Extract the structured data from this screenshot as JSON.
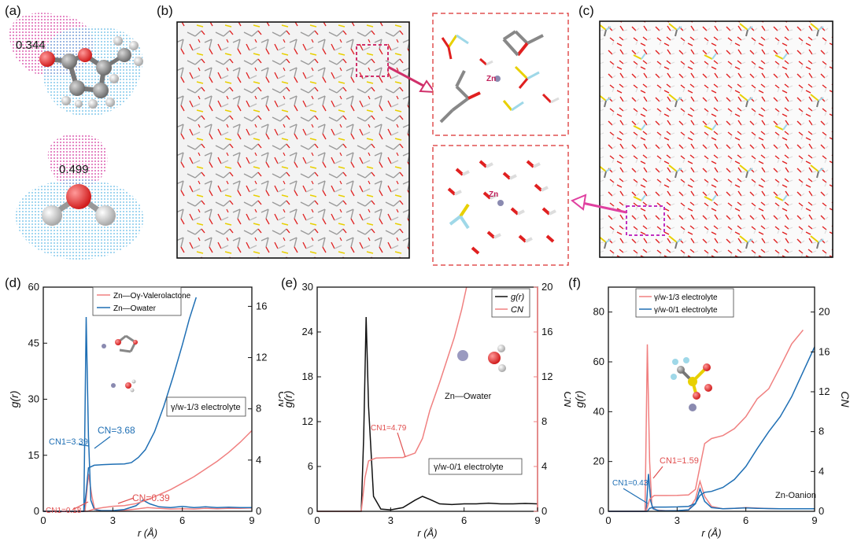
{
  "panels": {
    "a": {
      "label": "(a)",
      "esp_values": [
        "0.344",
        "0.499"
      ]
    },
    "b": {
      "label": "(b)",
      "zoom_label_top": "Zn",
      "zoom_label_bottom": "Zn"
    },
    "c": {
      "label": "(c)"
    },
    "d": {
      "label": "(d)"
    },
    "e": {
      "label": "(e)"
    },
    "f": {
      "label": "(f)"
    }
  },
  "colors": {
    "red_series": "#f08080",
    "blue_series": "#1f6fb4",
    "black_series": "#111111",
    "magenta": "#e0407a",
    "frame_dash": "#e05050"
  },
  "chart_data": [
    {
      "id": "d",
      "type": "line",
      "xlabel": "r (Å)",
      "ylabel": "g(r)",
      "y2label": "CN",
      "xlim": [
        0,
        9
      ],
      "ylim": [
        0,
        60
      ],
      "y2lim": [
        0,
        17.5
      ],
      "xticks": [
        0,
        3,
        6,
        9
      ],
      "yticks": [
        0,
        15,
        30,
        45,
        60
      ],
      "y2ticks": [
        0,
        4,
        8,
        12,
        16
      ],
      "legend": [
        "Zn—Oγ-Valerolactone",
        "Zn—Owater"
      ],
      "legend_position": "top-left",
      "system_label": "γ/w-1/3 electrolyte",
      "annotations": [
        "CN1=3.39",
        "CN=3.68",
        "CN1=0.18",
        "CN=0.39"
      ],
      "series": [
        {
          "name": "Zn—Oγ-Valerolactone g(r)",
          "axis": "left",
          "color": "red",
          "x": [
            0,
            1.8,
            1.95,
            2.1,
            2.2,
            2.3,
            2.5,
            3,
            3.5,
            4,
            4.5,
            5,
            5.5,
            6,
            6.5,
            7,
            7.5,
            8,
            8.5,
            9
          ],
          "y": [
            0,
            0,
            10,
            4,
            1,
            0.3,
            0.2,
            0.2,
            0.3,
            0.6,
            1,
            0.8,
            0.6,
            0.7,
            0.6,
            0.8,
            0.7,
            0.8,
            0.8,
            0.9
          ]
        },
        {
          "name": "Zn—Owater g(r)",
          "axis": "left",
          "color": "blue",
          "x": [
            0,
            1.75,
            1.85,
            1.95,
            2.05,
            2.2,
            2.5,
            3,
            3.5,
            4,
            4.3,
            4.6,
            5,
            5.5,
            6,
            6.5,
            7,
            7.5,
            8,
            8.5,
            9
          ],
          "y": [
            0,
            0,
            52,
            20,
            3,
            0.5,
            0.2,
            0.2,
            0.5,
            1.5,
            3,
            2,
            1.2,
            1,
            1.3,
            1,
            1.2,
            1,
            1.1,
            1,
            1
          ]
        },
        {
          "name": "Zn—Oγ-Valerolactone CN",
          "axis": "right",
          "color": "red",
          "x": [
            0,
            1.9,
            2.2,
            2.6,
            3,
            3.5,
            4,
            4.5,
            5,
            5.5,
            6,
            6.5,
            7,
            7.5,
            8,
            8.5,
            9
          ],
          "y": [
            0,
            0,
            0.18,
            0.3,
            0.39,
            0.45,
            0.6,
            0.9,
            1.3,
            1.7,
            2.2,
            2.7,
            3.3,
            3.9,
            4.6,
            5.4,
            6.3
          ]
        },
        {
          "name": "Zn—Owater CN",
          "axis": "right",
          "color": "blue",
          "x": [
            0,
            1.75,
            1.85,
            1.95,
            2.2,
            2.6,
            3,
            3.5,
            3.8,
            4.1,
            4.4,
            4.8,
            5.2,
            5.6,
            6,
            6.3,
            6.6
          ],
          "y": [
            0,
            0,
            1.5,
            3.39,
            3.6,
            3.65,
            3.68,
            3.7,
            3.8,
            4.2,
            4.8,
            6.2,
            8.2,
            10.5,
            13,
            15,
            16.7
          ]
        }
      ]
    },
    {
      "id": "e",
      "type": "line",
      "xlabel": "r (Å)",
      "ylabel": "g(r)",
      "y2label": "CN",
      "xlim": [
        0,
        9
      ],
      "ylim": [
        0,
        30
      ],
      "y2lim": [
        0,
        20
      ],
      "xticks": [
        0,
        3,
        6,
        9
      ],
      "yticks": [
        0,
        6,
        12,
        18,
        24,
        30
      ],
      "y2ticks": [
        0,
        4,
        8,
        12,
        16,
        20
      ],
      "legend": [
        "g(r)",
        "CN"
      ],
      "legend_position": "top-right",
      "pair_label": "Zn—Owater",
      "system_label": "γ/w-0/1 electrolyte",
      "annotations": [
        "CN1=4.79"
      ],
      "series": [
        {
          "name": "g(r)",
          "axis": "left",
          "color": "black",
          "x": [
            0,
            1.8,
            1.9,
            2.0,
            2.1,
            2.3,
            2.6,
            3,
            3.5,
            4,
            4.3,
            4.6,
            5,
            5.5,
            6,
            6.5,
            7,
            7.5,
            8,
            8.5,
            9
          ],
          "y": [
            0,
            0,
            10,
            26,
            14,
            2,
            0.3,
            0.2,
            0.5,
            1.5,
            2,
            1.6,
            1,
            0.9,
            1,
            1,
            1.1,
            1,
            1,
            1.05,
            1
          ]
        },
        {
          "name": "CN",
          "axis": "right",
          "color": "red",
          "x": [
            0,
            1.8,
            1.95,
            2.1,
            2.4,
            3,
            3.5,
            4,
            4.3,
            4.6,
            5,
            5.3,
            5.6,
            5.9,
            6.1
          ],
          "y": [
            0,
            0,
            3,
            4.5,
            4.75,
            4.79,
            4.8,
            5.2,
            6.5,
            9,
            11.5,
            13.5,
            15.5,
            18,
            20
          ]
        }
      ]
    },
    {
      "id": "f",
      "type": "line",
      "xlabel": "r (Å)",
      "ylabel": "g(r)",
      "y2label": "CN",
      "xlim": [
        0,
        9
      ],
      "ylim": [
        0,
        90
      ],
      "y2lim": [
        0,
        22.5
      ],
      "xticks": [
        0,
        3,
        6,
        9
      ],
      "yticks": [
        0,
        20,
        40,
        60,
        80
      ],
      "y2ticks": [
        0,
        4,
        8,
        12,
        16,
        20
      ],
      "legend": [
        "γ/w-1/3 electrolyte",
        "γ/w-0/1 electrolyte"
      ],
      "legend_position": "top-left",
      "pair_label": "Zn-Oanion",
      "annotations": [
        "CN1=1.59",
        "CN1=0.43"
      ],
      "series": [
        {
          "name": "γ/w-1/3 g(r)",
          "axis": "left",
          "color": "red",
          "x": [
            0,
            1.6,
            1.7,
            1.8,
            1.9,
            2.1,
            2.5,
            3,
            3.5,
            3.8,
            4,
            4.2,
            4.5,
            5,
            5.5,
            6,
            6.5,
            7,
            7.5,
            8,
            8.5,
            9
          ],
          "y": [
            0,
            0,
            67,
            20,
            2,
            0.5,
            0.3,
            0.3,
            0.5,
            5,
            12,
            6,
            2,
            1,
            1.2,
            1.5,
            1.3,
            1.1,
            1,
            1,
            1,
            1
          ]
        },
        {
          "name": "γ/w-0/1 g(r)",
          "axis": "left",
          "color": "blue",
          "x": [
            0,
            1.65,
            1.75,
            1.85,
            1.95,
            2.2,
            2.5,
            3,
            3.5,
            3.8,
            4,
            4.2,
            4.5,
            5,
            5.5,
            6,
            6.5,
            7,
            7.5,
            8,
            8.5,
            9
          ],
          "y": [
            0,
            0,
            15,
            4,
            1,
            0.3,
            0.2,
            0.3,
            0.6,
            3,
            9,
            4,
            1.5,
            1,
            1.2,
            1.4,
            1.2,
            1.1,
            1,
            1,
            1,
            1
          ]
        },
        {
          "name": "γ/w-1/3 CN",
          "axis": "right",
          "color": "red",
          "x": [
            0,
            1.65,
            1.8,
            2.0,
            2.5,
            3,
            3.5,
            3.8,
            4,
            4.2,
            4.5,
            5,
            5.5,
            6,
            6.5,
            7,
            7.5,
            8,
            8.5
          ],
          "y": [
            0,
            0,
            1.2,
            1.59,
            1.59,
            1.6,
            1.65,
            2.2,
            4.5,
            6.8,
            7.3,
            7.6,
            8.3,
            9.5,
            11.3,
            12.3,
            14.5,
            16.8,
            18.2
          ]
        },
        {
          "name": "γ/w-0/1 CN",
          "axis": "right",
          "color": "blue",
          "x": [
            0,
            1.7,
            1.8,
            2.0,
            2.5,
            3,
            3.5,
            3.8,
            4,
            4.2,
            4.5,
            5,
            5.5,
            6,
            6.5,
            7,
            7.5,
            8,
            8.5,
            9
          ],
          "y": [
            0,
            0,
            0.3,
            0.43,
            0.43,
            0.44,
            0.5,
            0.8,
            1.6,
            1.9,
            2,
            2.4,
            3.2,
            4.5,
            6.3,
            8,
            9.5,
            11.5,
            14,
            16.5
          ]
        }
      ]
    }
  ]
}
